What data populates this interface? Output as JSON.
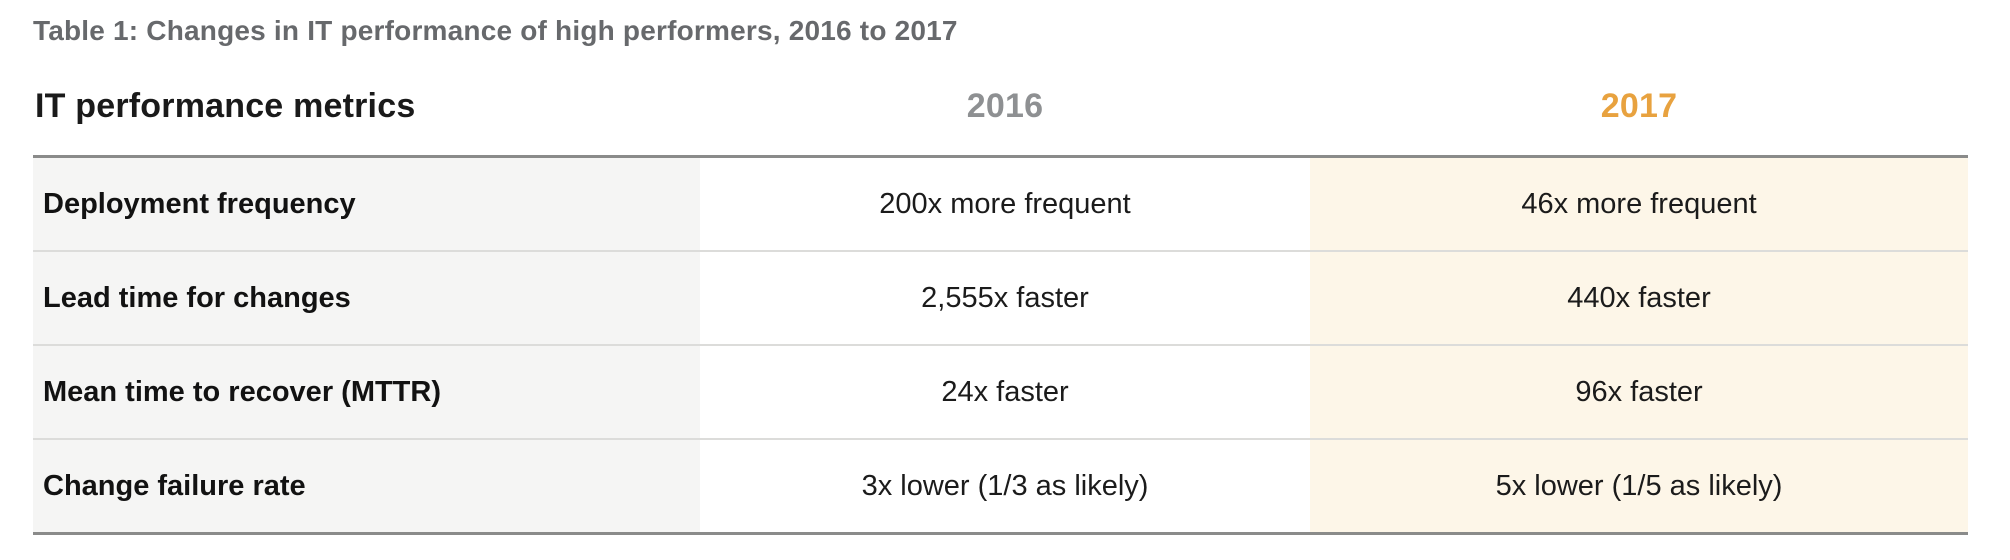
{
  "title": "Table 1: Changes in IT performance of high performers, 2016 to 2017",
  "table": {
    "headers": {
      "metrics": "IT performance metrics",
      "col_2016": "2016",
      "col_2017": "2017"
    },
    "rows": [
      {
        "metric": "Deployment frequency",
        "y2016": "200x more frequent",
        "y2017": "46x more frequent"
      },
      {
        "metric": "Lead time for changes",
        "y2016": "2,555x faster",
        "y2017": "440x faster"
      },
      {
        "metric": "Mean time to recover (MTTR)",
        "y2016": "24x faster",
        "y2017": "96x faster"
      },
      {
        "metric": "Change failure rate",
        "y2016": "3x lower (1/3 as likely)",
        "y2017": "5x lower (1/5 as likely)"
      }
    ]
  },
  "colors": {
    "title_text": "#67696c",
    "header_2016_text": "#8e9092",
    "header_2017_text": "#e8a23f",
    "metric_column_bg": "#f5f5f4",
    "col_2017_bg": "#fdf6e8",
    "table_outer_border": "#8a8b8a",
    "row_separator": "#dcdcda"
  }
}
